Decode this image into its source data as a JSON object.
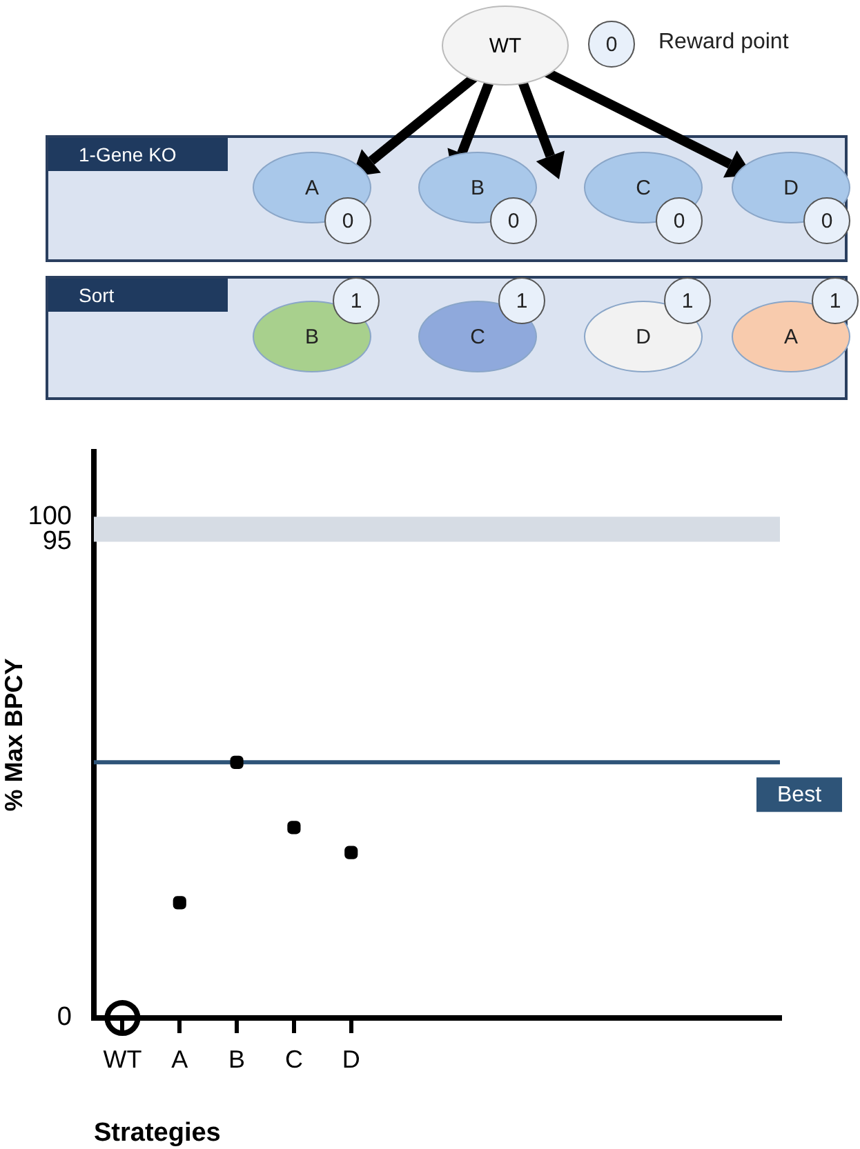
{
  "chart_data": [
    {
      "type": "other",
      "annotations": [
        "WT",
        "0",
        "Reward point",
        "1-Gene KO",
        "A",
        "0",
        "B",
        "0",
        "C",
        "0",
        "D",
        "0",
        "Sort",
        "B",
        "1",
        "C",
        "1",
        "D",
        "1",
        "A",
        "1"
      ]
    },
    {
      "type": "scatter",
      "categories": [
        "WT",
        "A",
        "B",
        "C",
        "D",
        null,
        null,
        null,
        null,
        null,
        null,
        null
      ],
      "series": [
        {
          "color": "#000000",
          "marker": "circle",
          "values": [
            0,
            null,
            null,
            null,
            null,
            null,
            null,
            null,
            null,
            null,
            null,
            null
          ]
        },
        {
          "color": "#000000",
          "marker": "square",
          "values": [
            null,
            23,
            51,
            38,
            33,
            null,
            null,
            null,
            null,
            null,
            null,
            null
          ]
        }
      ],
      "ylim": [
        0,
        113
      ],
      "yticks": [
        0,
        95,
        100
      ],
      "grid": false,
      "legend": false,
      "bands": [
        {
          "axis": "y",
          "from": 95,
          "to": 100,
          "color": "#d6dce4"
        }
      ],
      "ref_lines": [
        {
          "axis": "y",
          "value": 51,
          "label": "Best",
          "color": "#2e5478"
        }
      ],
      "ylabel": "% Max BPCY",
      "xlabel": "Strategies"
    }
  ]
}
